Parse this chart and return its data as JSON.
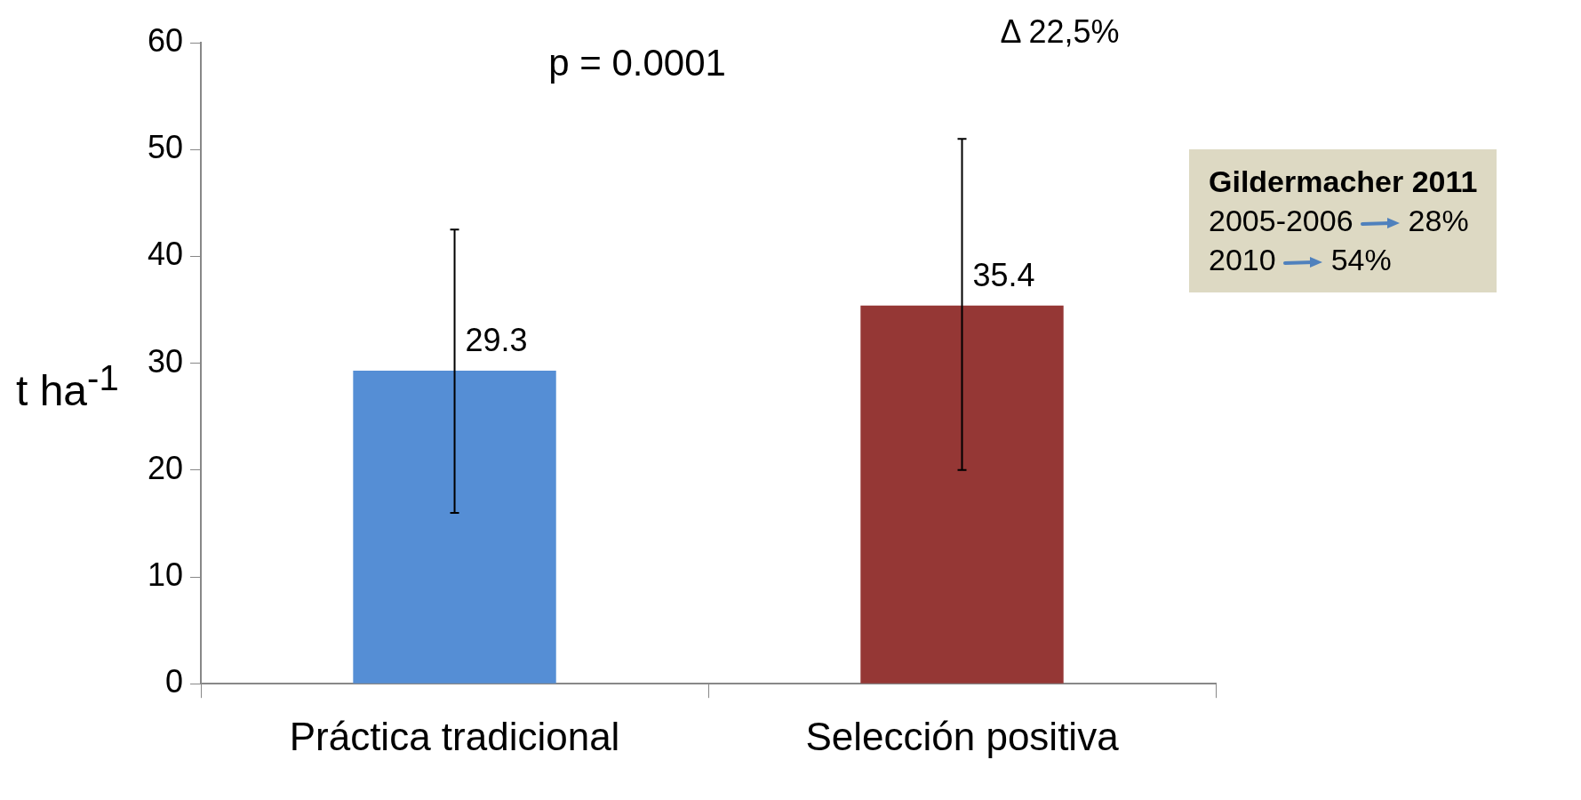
{
  "chart_data": {
    "type": "bar",
    "ylabel": "t ha$^{-1}$",
    "categories": [
      "Práctica tradicional",
      "Selección positiva"
    ],
    "values": [
      29.3,
      35.4
    ],
    "colors": [
      "#558ed5",
      "#953735"
    ],
    "errors": [
      [
        16,
        42.5
      ],
      [
        20,
        51
      ]
    ],
    "ylim": [
      0,
      60
    ],
    "yticks": [
      0,
      10,
      20,
      30,
      40,
      50,
      60
    ],
    "grid": false,
    "data_labels": true,
    "annotations": [
      "p = 0.0001",
      "Δ 22,5%",
      "Gildermacher 2011",
      "2005-2006",
      "28%",
      "2010",
      "54%"
    ]
  }
}
